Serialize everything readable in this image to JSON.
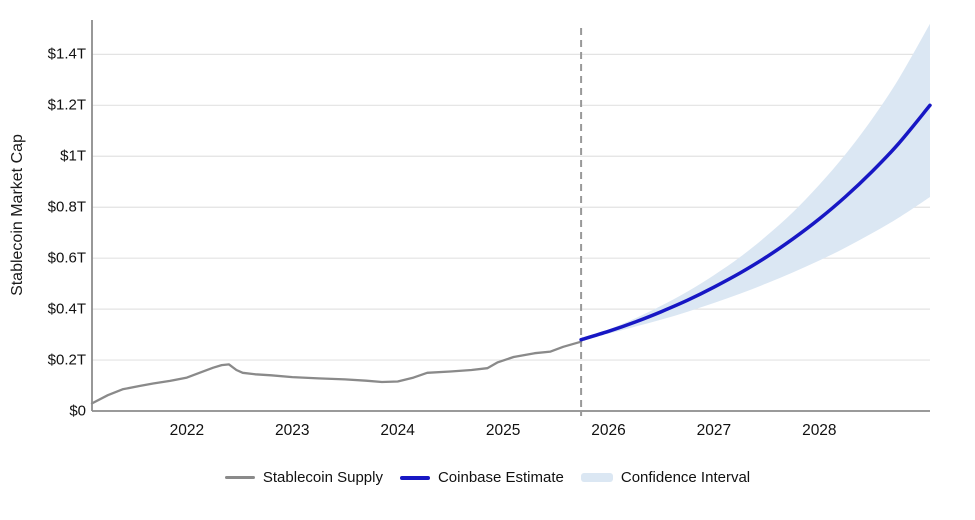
{
  "chart_data": {
    "type": "line",
    "title": "",
    "ylabel": "Stablecoin Market Cap",
    "legend_position": "bottom",
    "grid": true,
    "axis": {
      "x_min": 2021.1,
      "x_max": 2029.05,
      "y_min": 0,
      "y_max": 1.535
    },
    "y_ticks": [
      {
        "value": 0,
        "label": "$0"
      },
      {
        "value": 0.2,
        "label": "$0.2T"
      },
      {
        "value": 0.4,
        "label": "$0.4T"
      },
      {
        "value": 0.6,
        "label": "$0.6T"
      },
      {
        "value": 0.8,
        "label": "$0.8T"
      },
      {
        "value": 1.0,
        "label": "$1T"
      },
      {
        "value": 1.2,
        "label": "$1.2T"
      },
      {
        "value": 1.4,
        "label": "$1.4T"
      }
    ],
    "x_ticks": [
      {
        "year": 2022,
        "label": "2022"
      },
      {
        "year": 2023,
        "label": "2023"
      },
      {
        "year": 2024,
        "label": "2024"
      },
      {
        "year": 2025,
        "label": "2025"
      },
      {
        "year": 2026,
        "label": "2026"
      },
      {
        "year": 2027,
        "label": "2027"
      },
      {
        "year": 2028,
        "label": "2028"
      }
    ],
    "forecast_start_year": 2025.74,
    "colors": {
      "history": "#8a8a8a",
      "estimate": "#1717c4",
      "band": "#dbe7f3",
      "grid": "#e3e3e3",
      "axis": "#8c8c8c",
      "dashed": "#999999",
      "text": "#111111"
    },
    "series": [
      {
        "name": "Stablecoin Supply",
        "points": [
          [
            2021.1,
            0.03
          ],
          [
            2021.25,
            0.062
          ],
          [
            2021.39,
            0.085
          ],
          [
            2021.55,
            0.098
          ],
          [
            2021.68,
            0.108
          ],
          [
            2021.84,
            0.118
          ],
          [
            2022.0,
            0.131
          ],
          [
            2022.12,
            0.15
          ],
          [
            2022.25,
            0.17
          ],
          [
            2022.33,
            0.18
          ],
          [
            2022.4,
            0.183
          ],
          [
            2022.47,
            0.161
          ],
          [
            2022.53,
            0.15
          ],
          [
            2022.65,
            0.144
          ],
          [
            2022.8,
            0.14
          ],
          [
            2023.0,
            0.133
          ],
          [
            2023.25,
            0.128
          ],
          [
            2023.5,
            0.124
          ],
          [
            2023.7,
            0.119
          ],
          [
            2023.85,
            0.114
          ],
          [
            2024.0,
            0.116
          ],
          [
            2024.15,
            0.131
          ],
          [
            2024.28,
            0.15
          ],
          [
            2024.5,
            0.155
          ],
          [
            2024.7,
            0.161
          ],
          [
            2024.85,
            0.168
          ],
          [
            2024.95,
            0.191
          ],
          [
            2025.1,
            0.212
          ],
          [
            2025.3,
            0.227
          ],
          [
            2025.45,
            0.233
          ],
          [
            2025.57,
            0.252
          ],
          [
            2025.74,
            0.272
          ]
        ]
      },
      {
        "name": "Coinbase Estimate",
        "points": [
          [
            2025.74,
            0.28
          ],
          [
            2026.0,
            0.313
          ],
          [
            2026.25,
            0.349
          ],
          [
            2026.5,
            0.39
          ],
          [
            2026.75,
            0.435
          ],
          [
            2027.0,
            0.486
          ],
          [
            2027.25,
            0.542
          ],
          [
            2027.5,
            0.605
          ],
          [
            2027.75,
            0.676
          ],
          [
            2028.0,
            0.754
          ],
          [
            2028.25,
            0.842
          ],
          [
            2028.5,
            0.94
          ],
          [
            2028.75,
            1.049
          ],
          [
            2029.05,
            1.2
          ]
        ]
      },
      {
        "name": "Confidence Interval",
        "upper": [
          [
            2025.74,
            0.28
          ],
          [
            2026.0,
            0.32
          ],
          [
            2026.25,
            0.363
          ],
          [
            2026.5,
            0.413
          ],
          [
            2026.75,
            0.469
          ],
          [
            2027.0,
            0.533
          ],
          [
            2027.25,
            0.605
          ],
          [
            2027.5,
            0.688
          ],
          [
            2027.75,
            0.781
          ],
          [
            2028.0,
            0.888
          ],
          [
            2028.25,
            1.009
          ],
          [
            2028.5,
            1.146
          ],
          [
            2028.75,
            1.302
          ],
          [
            2029.05,
            1.52
          ]
        ],
        "lower": [
          [
            2025.74,
            0.28
          ],
          [
            2026.0,
            0.304
          ],
          [
            2026.25,
            0.331
          ],
          [
            2026.5,
            0.359
          ],
          [
            2026.75,
            0.39
          ],
          [
            2027.0,
            0.424
          ],
          [
            2027.25,
            0.461
          ],
          [
            2027.5,
            0.501
          ],
          [
            2027.75,
            0.544
          ],
          [
            2028.0,
            0.591
          ],
          [
            2028.25,
            0.642
          ],
          [
            2028.5,
            0.698
          ],
          [
            2028.75,
            0.758
          ],
          [
            2029.05,
            0.84
          ]
        ]
      }
    ],
    "legend": [
      {
        "label": "Stablecoin Supply"
      },
      {
        "label": "Coinbase Estimate"
      },
      {
        "label": "Confidence Interval"
      }
    ]
  }
}
